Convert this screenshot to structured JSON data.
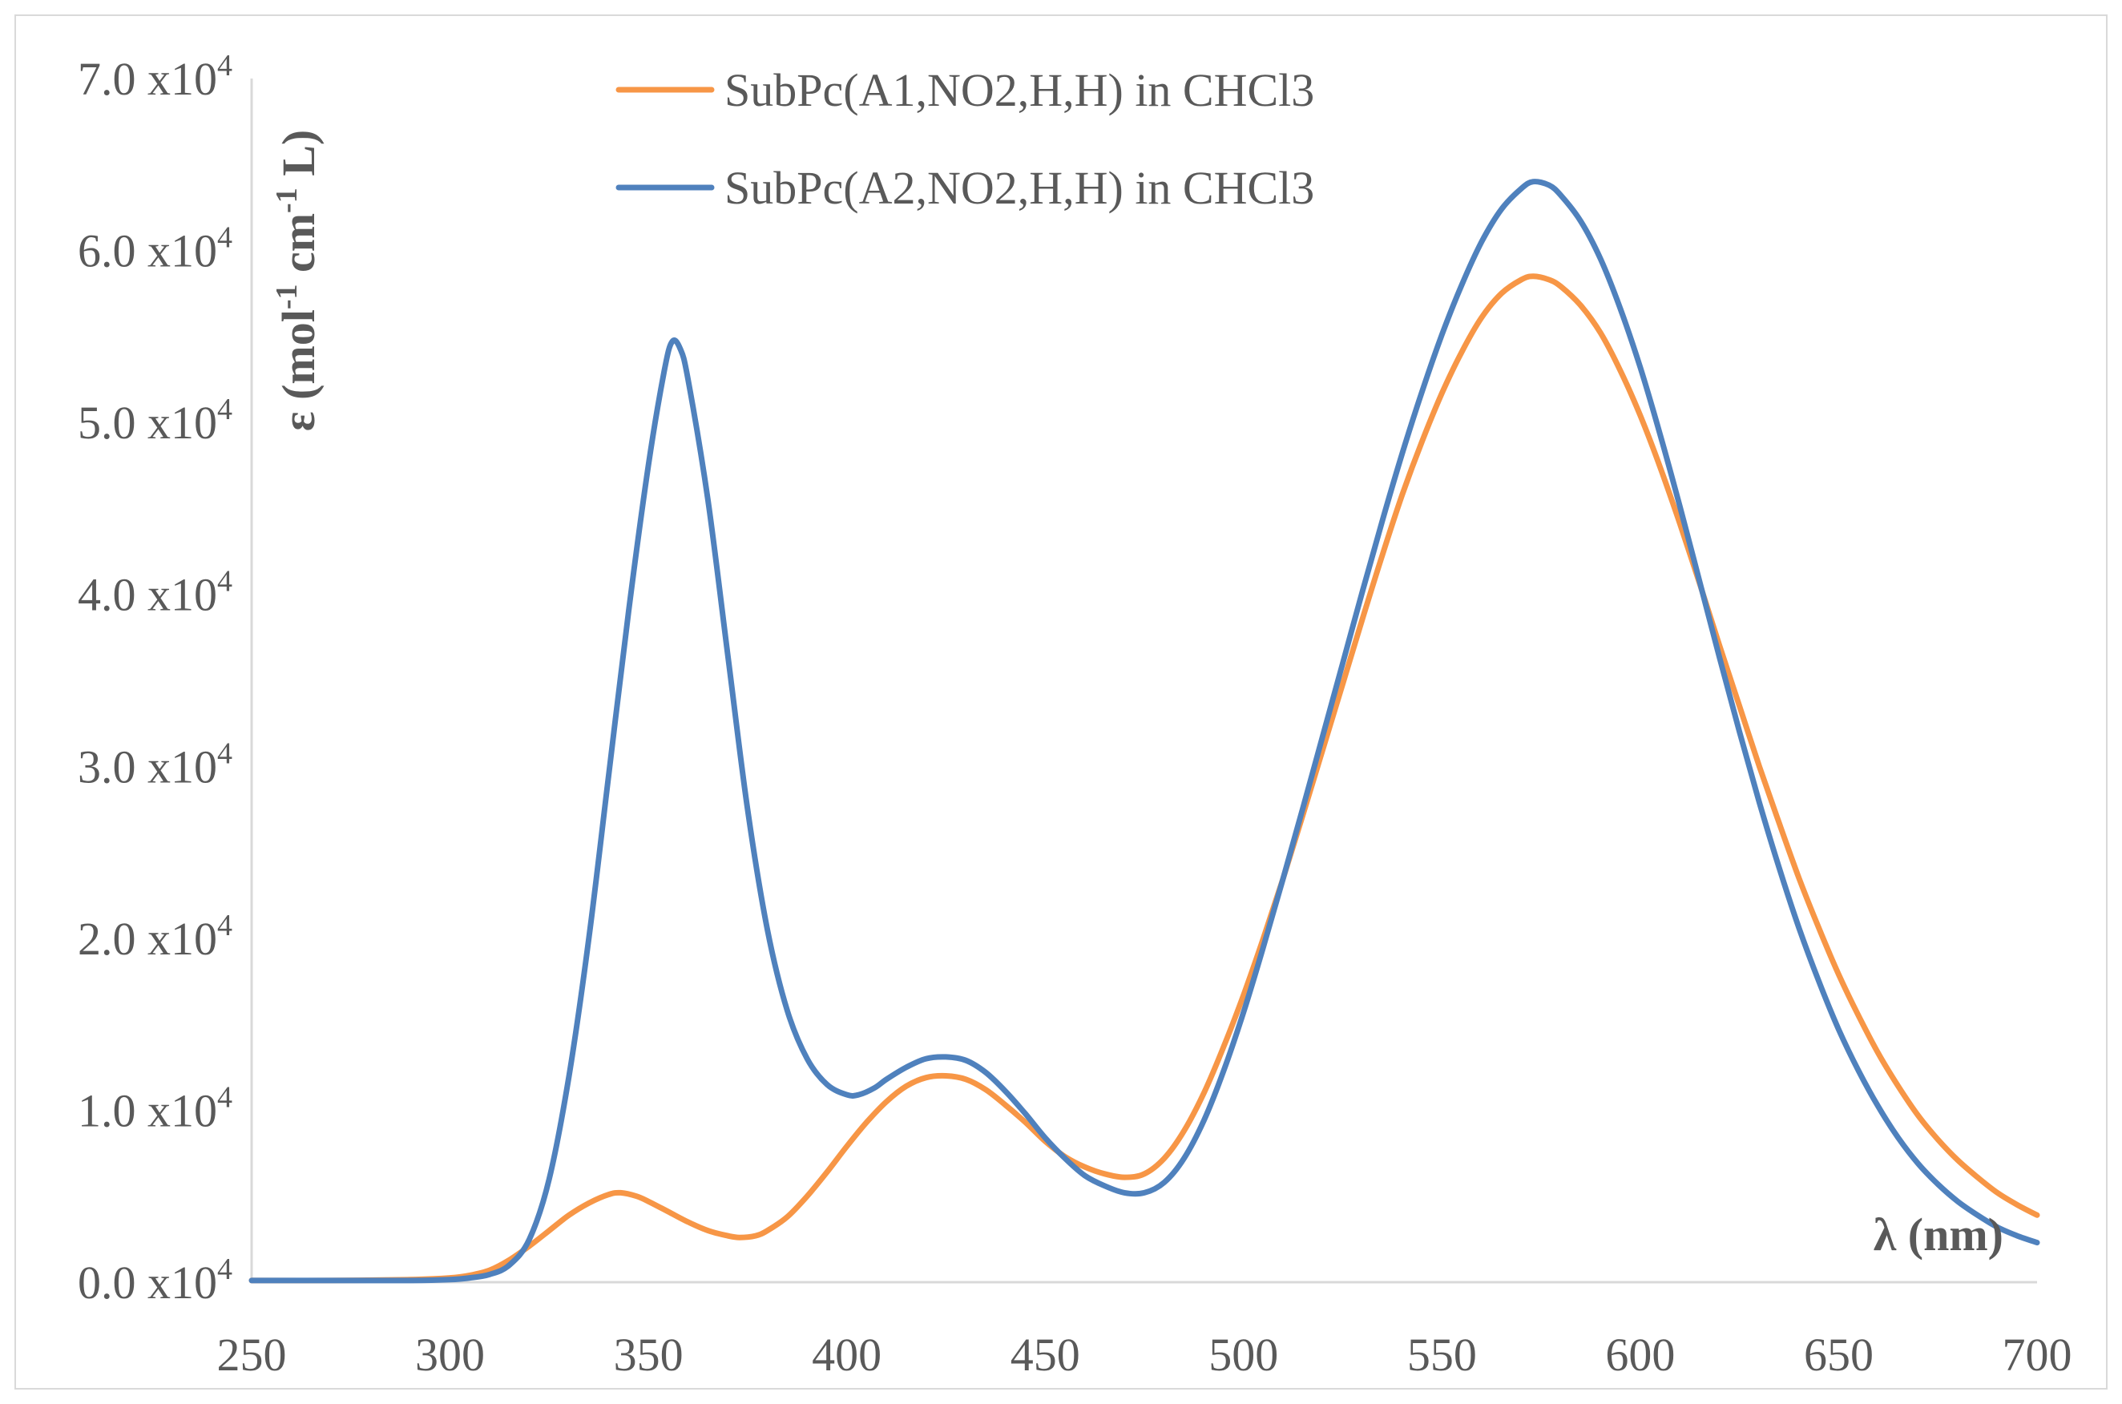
{
  "chart_data": {
    "type": "line",
    "xlabel": "λ (nm)",
    "ylabel": {
      "parts": [
        "ε (mol",
        "-1",
        " cm",
        "-1",
        " L)"
      ]
    },
    "xlim": [
      250,
      700
    ],
    "ylim": [
      0,
      70000
    ],
    "x_ticks": [
      250,
      300,
      350,
      400,
      450,
      500,
      550,
      600,
      650,
      700
    ],
    "x_tick_labels": [
      "250",
      "300",
      "350",
      "400",
      "450",
      "500",
      "550",
      "600",
      "650",
      "700"
    ],
    "y_ticks": [
      0,
      10000,
      20000,
      30000,
      40000,
      50000,
      60000,
      70000
    ],
    "y_tick_labels": [
      {
        "mantissa": "0.0 x10",
        "exp": "4"
      },
      {
        "mantissa": "1.0 x10",
        "exp": "4"
      },
      {
        "mantissa": "2.0 x10",
        "exp": "4"
      },
      {
        "mantissa": "3.0 x10",
        "exp": "4"
      },
      {
        "mantissa": "4.0 x10",
        "exp": "4"
      },
      {
        "mantissa": "5.0 x10",
        "exp": "4"
      },
      {
        "mantissa": "6.0 x10",
        "exp": "4"
      },
      {
        "mantissa": "7.0 x10",
        "exp": "4"
      }
    ],
    "grid": false,
    "legend_position": "top-center",
    "series": [
      {
        "name": "SubPc(A1,NO2,H,H) in CHCl3",
        "color": "#f79646",
        "points": [
          [
            250,
            100
          ],
          [
            270,
            100
          ],
          [
            290,
            150
          ],
          [
            300,
            250
          ],
          [
            305,
            400
          ],
          [
            310,
            700
          ],
          [
            315,
            1300
          ],
          [
            320,
            2100
          ],
          [
            325,
            3000
          ],
          [
            330,
            3900
          ],
          [
            335,
            4600
          ],
          [
            340,
            5100
          ],
          [
            343,
            5200
          ],
          [
            347,
            5000
          ],
          [
            350,
            4700
          ],
          [
            355,
            4100
          ],
          [
            360,
            3500
          ],
          [
            365,
            3000
          ],
          [
            370,
            2700
          ],
          [
            373,
            2600
          ],
          [
            377,
            2700
          ],
          [
            380,
            3000
          ],
          [
            385,
            3800
          ],
          [
            390,
            5000
          ],
          [
            395,
            6400
          ],
          [
            400,
            7900
          ],
          [
            405,
            9300
          ],
          [
            410,
            10500
          ],
          [
            415,
            11400
          ],
          [
            420,
            11900
          ],
          [
            425,
            12000
          ],
          [
            430,
            11800
          ],
          [
            435,
            11200
          ],
          [
            440,
            10300
          ],
          [
            445,
            9300
          ],
          [
            450,
            8200
          ],
          [
            455,
            7300
          ],
          [
            460,
            6700
          ],
          [
            465,
            6300
          ],
          [
            470,
            6100
          ],
          [
            475,
            6300
          ],
          [
            480,
            7200
          ],
          [
            485,
            8800
          ],
          [
            490,
            11000
          ],
          [
            495,
            13700
          ],
          [
            500,
            16700
          ],
          [
            505,
            20000
          ],
          [
            510,
            23500
          ],
          [
            515,
            27200
          ],
          [
            520,
            31000
          ],
          [
            525,
            34800
          ],
          [
            530,
            38600
          ],
          [
            535,
            42300
          ],
          [
            540,
            45800
          ],
          [
            545,
            48900
          ],
          [
            550,
            51700
          ],
          [
            555,
            54100
          ],
          [
            560,
            56100
          ],
          [
            565,
            57500
          ],
          [
            570,
            58300
          ],
          [
            573,
            58500
          ],
          [
            577,
            58300
          ],
          [
            580,
            57900
          ],
          [
            585,
            56800
          ],
          [
            590,
            55200
          ],
          [
            595,
            53000
          ],
          [
            600,
            50400
          ],
          [
            605,
            47400
          ],
          [
            610,
            44100
          ],
          [
            615,
            40600
          ],
          [
            620,
            37000
          ],
          [
            625,
            33500
          ],
          [
            630,
            30000
          ],
          [
            635,
            26700
          ],
          [
            640,
            23500
          ],
          [
            645,
            20600
          ],
          [
            650,
            17900
          ],
          [
            655,
            15500
          ],
          [
            660,
            13300
          ],
          [
            665,
            11400
          ],
          [
            670,
            9700
          ],
          [
            675,
            8300
          ],
          [
            680,
            7100
          ],
          [
            685,
            6100
          ],
          [
            690,
            5200
          ],
          [
            695,
            4500
          ],
          [
            700,
            3900
          ]
        ]
      },
      {
        "name": "SubPc(A2,NO2,H,H) in CHCl3",
        "color": "#4f81bd",
        "points": [
          [
            250,
            100
          ],
          [
            270,
            100
          ],
          [
            290,
            100
          ],
          [
            300,
            150
          ],
          [
            305,
            250
          ],
          [
            310,
            450
          ],
          [
            315,
            1000
          ],
          [
            320,
            2500
          ],
          [
            325,
            6000
          ],
          [
            330,
            12000
          ],
          [
            335,
            20000
          ],
          [
            340,
            29500
          ],
          [
            345,
            39000
          ],
          [
            350,
            47500
          ],
          [
            354,
            53000
          ],
          [
            356,
            54700
          ],
          [
            358,
            54300
          ],
          [
            360,
            52500
          ],
          [
            365,
            45500
          ],
          [
            370,
            36500
          ],
          [
            375,
            27500
          ],
          [
            380,
            20500
          ],
          [
            385,
            15800
          ],
          [
            390,
            13000
          ],
          [
            395,
            11500
          ],
          [
            400,
            10900
          ],
          [
            403,
            10900
          ],
          [
            407,
            11300
          ],
          [
            410,
            11800
          ],
          [
            415,
            12500
          ],
          [
            420,
            13000
          ],
          [
            425,
            13100
          ],
          [
            430,
            12900
          ],
          [
            435,
            12200
          ],
          [
            440,
            11100
          ],
          [
            445,
            9800
          ],
          [
            450,
            8400
          ],
          [
            455,
            7200
          ],
          [
            460,
            6200
          ],
          [
            465,
            5600
          ],
          [
            470,
            5200
          ],
          [
            475,
            5200
          ],
          [
            480,
            5800
          ],
          [
            485,
            7200
          ],
          [
            490,
            9400
          ],
          [
            495,
            12300
          ],
          [
            500,
            15700
          ],
          [
            505,
            19500
          ],
          [
            510,
            23500
          ],
          [
            515,
            27600
          ],
          [
            520,
            31800
          ],
          [
            525,
            36000
          ],
          [
            530,
            40200
          ],
          [
            535,
            44300
          ],
          [
            540,
            48200
          ],
          [
            545,
            51800
          ],
          [
            550,
            55100
          ],
          [
            555,
            58000
          ],
          [
            560,
            60500
          ],
          [
            565,
            62400
          ],
          [
            570,
            63600
          ],
          [
            573,
            64000
          ],
          [
            577,
            63800
          ],
          [
            580,
            63200
          ],
          [
            585,
            61700
          ],
          [
            590,
            59500
          ],
          [
            595,
            56600
          ],
          [
            600,
            53200
          ],
          [
            605,
            49300
          ],
          [
            610,
            45100
          ],
          [
            615,
            40700
          ],
          [
            620,
            36300
          ],
          [
            625,
            32000
          ],
          [
            630,
            27900
          ],
          [
            635,
            24100
          ],
          [
            640,
            20600
          ],
          [
            645,
            17500
          ],
          [
            650,
            14700
          ],
          [
            655,
            12300
          ],
          [
            660,
            10200
          ],
          [
            665,
            8400
          ],
          [
            670,
            6900
          ],
          [
            675,
            5700
          ],
          [
            680,
            4700
          ],
          [
            685,
            3900
          ],
          [
            690,
            3200
          ],
          [
            695,
            2700
          ],
          [
            700,
            2300
          ]
        ]
      }
    ]
  }
}
